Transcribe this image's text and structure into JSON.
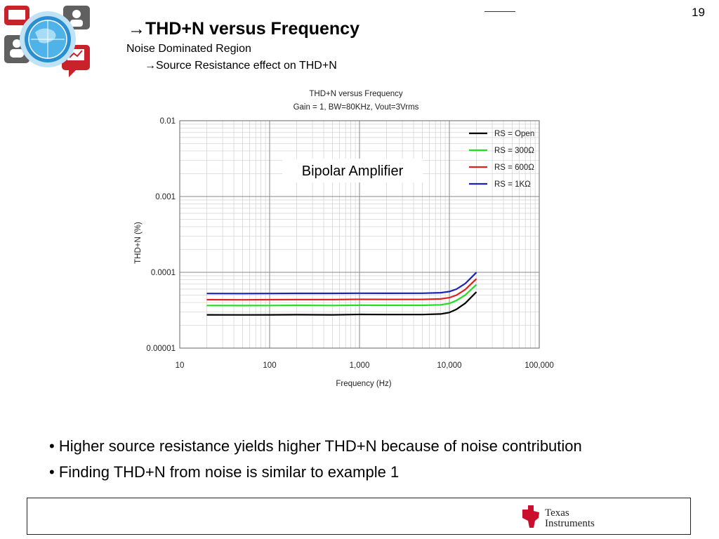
{
  "page": {
    "number": "19",
    "title": "THD+N versus Frequency",
    "subtitle": "Noise Dominated Region",
    "subsub": "Source Resistance effect on THD+N",
    "arrow": "→"
  },
  "bullets": [
    "Higher source resistance yields higher THD+N because of noise contribution",
    "Finding THD+N from noise is similar to example 1"
  ],
  "footer": {
    "brand_line1": "Texas",
    "brand_line2": "Instruments"
  },
  "chart_data": {
    "type": "line",
    "title": "THD+N versus Frequency",
    "subtitle": "Gain = 1, BW=80KHz, Vout=3Vrms",
    "xlabel": "Frequency (Hz)",
    "ylabel": "THD+N (%)",
    "x_scale": "log",
    "y_scale": "log",
    "xlim": [
      10,
      100000
    ],
    "ylim": [
      1e-05,
      0.01
    ],
    "x_ticks": [
      "10",
      "100",
      "1,000",
      "10,000",
      "100,000"
    ],
    "y_ticks": [
      "0.01",
      "0.001",
      "0.0001",
      "0.00001"
    ],
    "grid": true,
    "legend_position": "top-right",
    "annotation": "Bipolar Amplifier",
    "x": [
      20,
      50,
      100,
      200,
      500,
      1000,
      2000,
      5000,
      8000,
      10000,
      12000,
      15000,
      20000
    ],
    "series": [
      {
        "name": "RS = Open",
        "color": "#000000",
        "values": [
          2.75e-05,
          2.74e-05,
          2.75e-05,
          2.76e-05,
          2.75e-05,
          2.78e-05,
          2.77e-05,
          2.77e-05,
          2.82e-05,
          2.95e-05,
          3.25e-05,
          3.9e-05,
          5.5e-05
        ]
      },
      {
        "name": "RS = 300Ω",
        "color": "#22dd22",
        "values": [
          3.65e-05,
          3.64e-05,
          3.65e-05,
          3.66e-05,
          3.65e-05,
          3.68e-05,
          3.67e-05,
          3.67e-05,
          3.73e-05,
          3.88e-05,
          4.25e-05,
          5e-05,
          6.9e-05
        ]
      },
      {
        "name": "RS = 600Ω",
        "color": "#e02020",
        "values": [
          4.35e-05,
          4.34e-05,
          4.35e-05,
          4.36e-05,
          4.36e-05,
          4.4e-05,
          4.39e-05,
          4.39e-05,
          4.46e-05,
          4.63e-05,
          5e-05,
          5.9e-05,
          8.2e-05
        ]
      },
      {
        "name": "RS = 1KΩ",
        "color": "#1a22b8",
        "values": [
          5.25e-05,
          5.24e-05,
          5.25e-05,
          5.28e-05,
          5.27e-05,
          5.3e-05,
          5.29e-05,
          5.3e-05,
          5.38e-05,
          5.58e-05,
          6e-05,
          7.1e-05,
          9.95e-05
        ]
      }
    ]
  }
}
